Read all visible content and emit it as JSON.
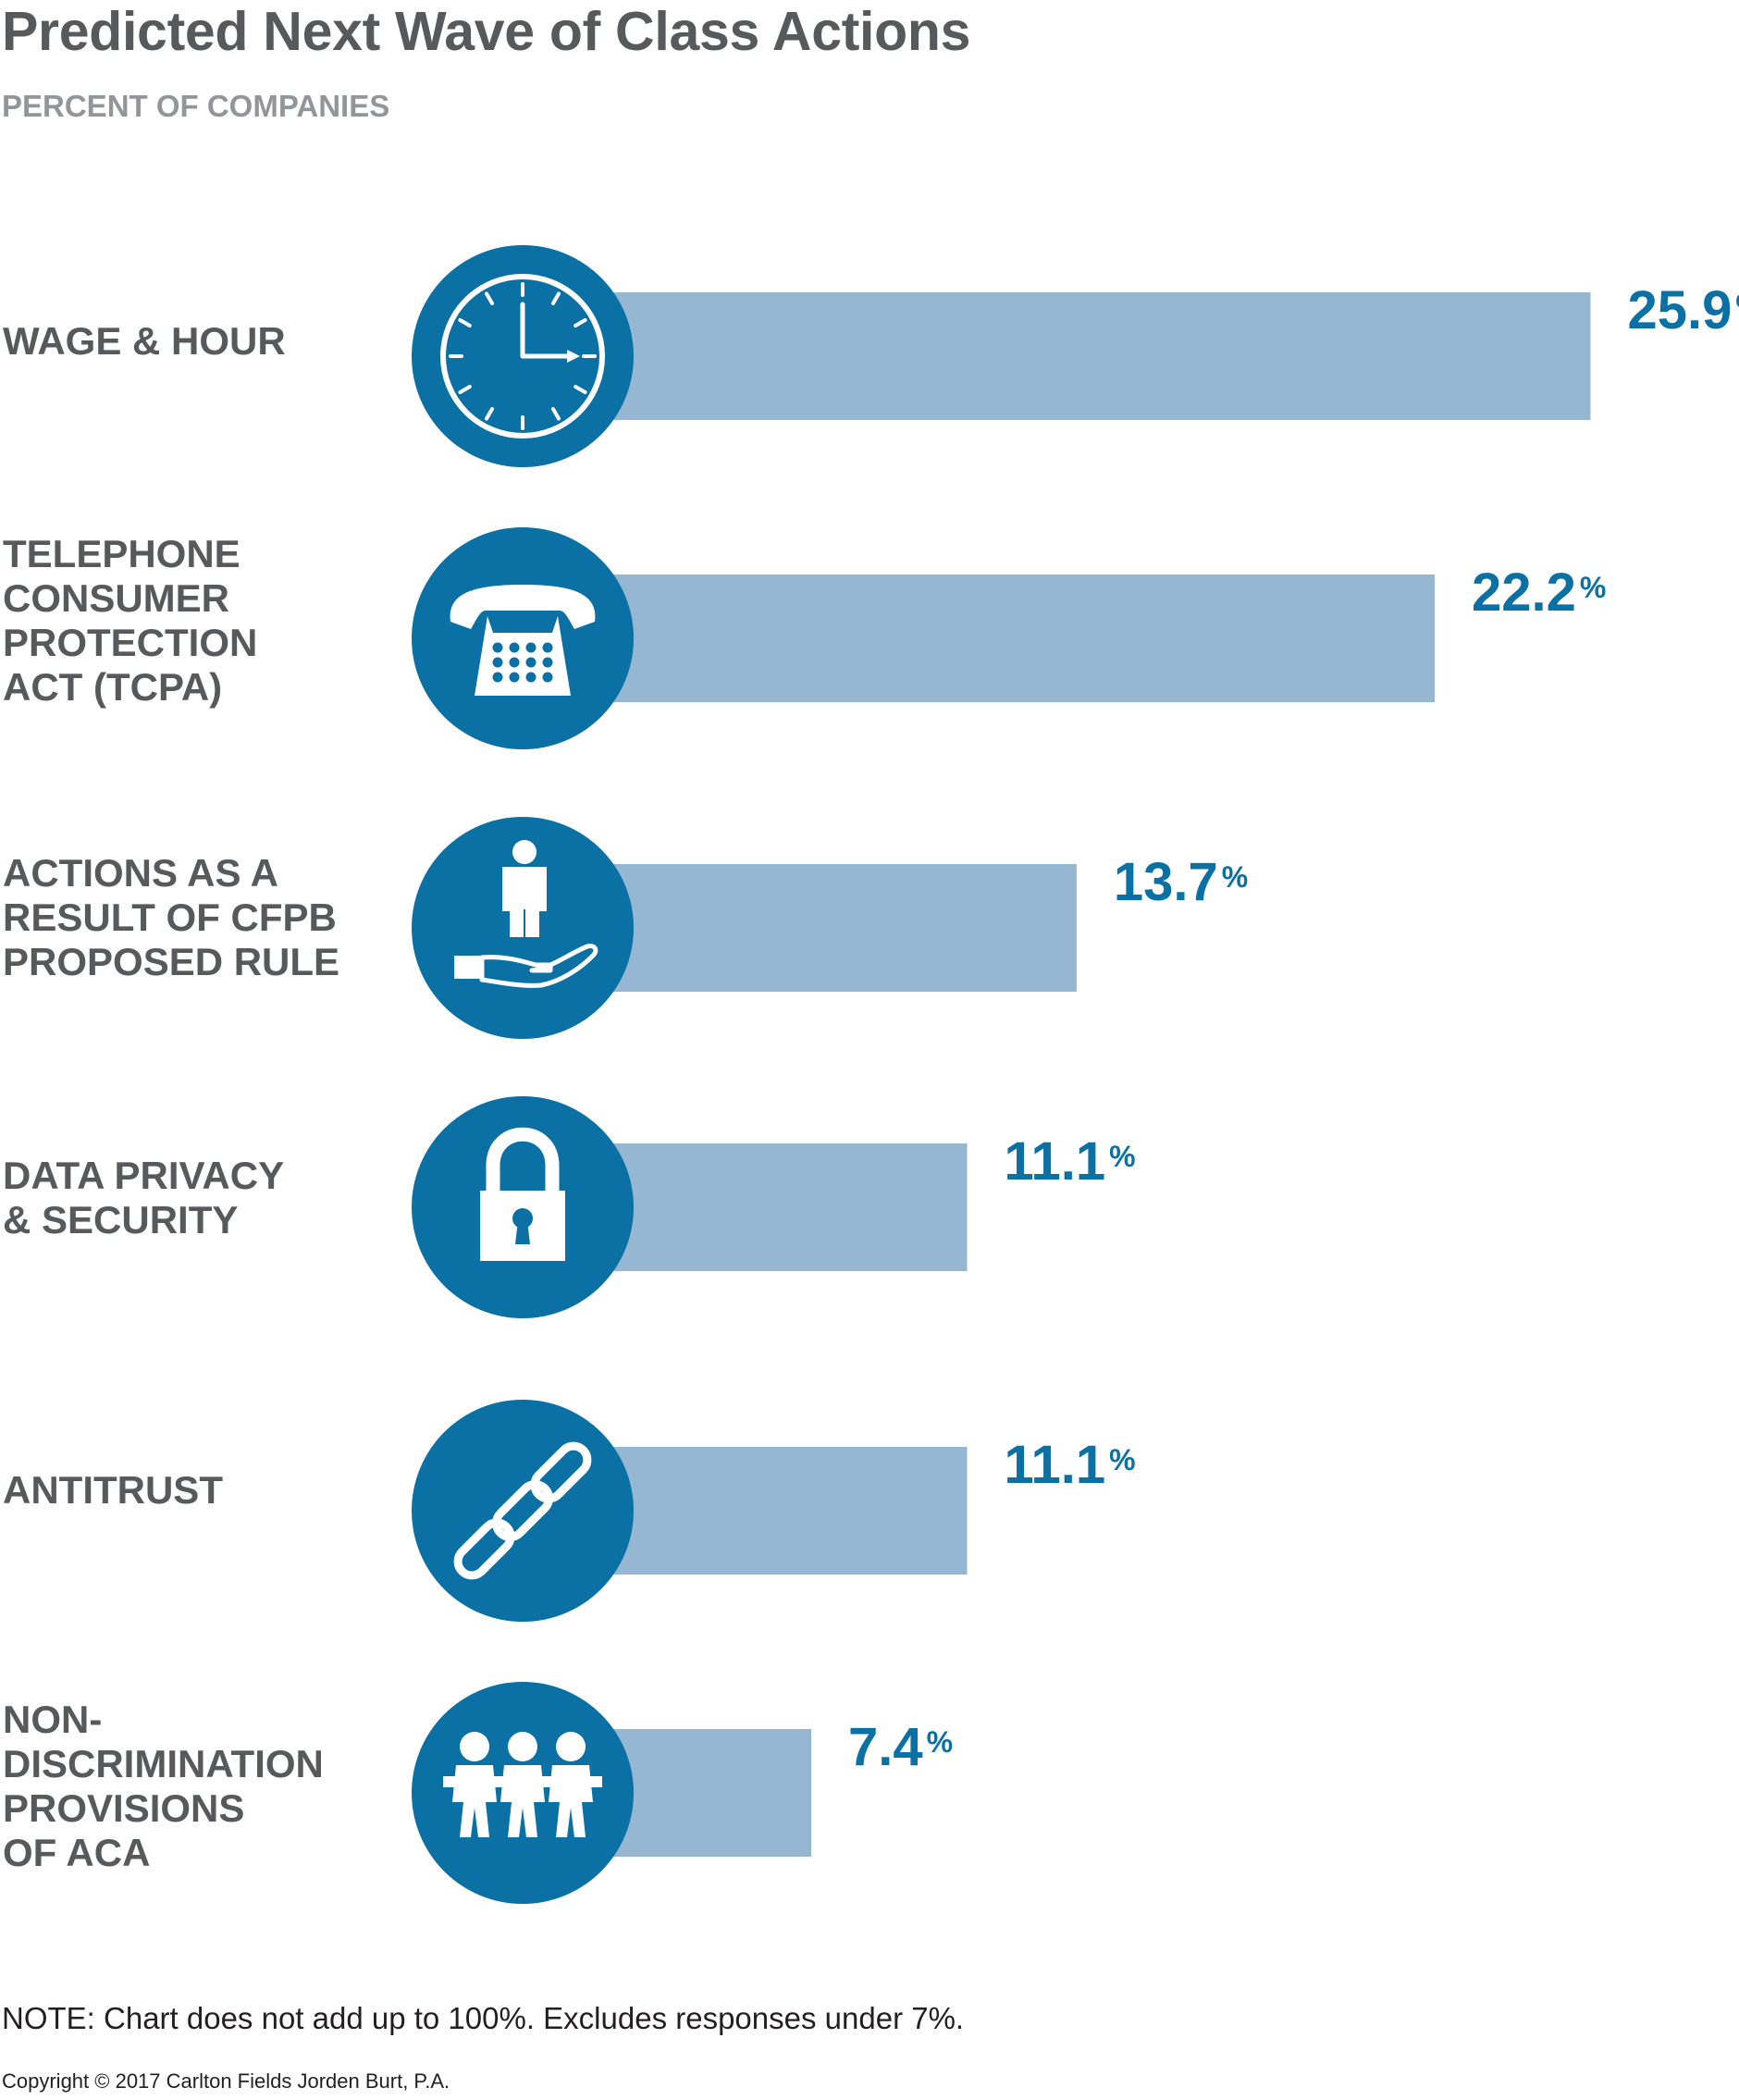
{
  "title": "Predicted Next Wave of Class Actions",
  "subtitle": "PERCENT OF COMPANIES",
  "note": "NOTE: Chart does not add up to 100%. Excludes responses under 7%.",
  "copyright": "Copyright © 2017 Carlton Fields Jorden Burt, P.A.",
  "colors": {
    "bar": "#95b7d1",
    "circle": "#0b70a3",
    "value": "#0b70a3",
    "label": "#58595b"
  },
  "chart_data": {
    "type": "bar",
    "orientation": "horizontal",
    "title": "Predicted Next Wave of Class Actions",
    "subtitle": "PERCENT OF COMPANIES",
    "unit": "%",
    "categories": [
      "WAGE & HOUR",
      "TELEPHONE CONSUMER PROTECTION ACT (TCPA)",
      "ACTIONS AS A RESULT OF CFPB PROPOSED RULE",
      "DATA PRIVACY & SECURITY",
      "ANTITRUST",
      "NON-DISCRIMINATION PROVISIONS OF ACA"
    ],
    "values": [
      25.9,
      22.2,
      13.7,
      11.1,
      11.1,
      7.4
    ],
    "value_labels": [
      "25.9",
      "22.2",
      "13.7",
      "11.1",
      "11.1",
      "7.4"
    ],
    "label_lines": [
      [
        "WAGE & HOUR"
      ],
      [
        "TELEPHONE",
        "CONSUMER",
        "PROTECTION",
        "ACT (TCPA)"
      ],
      [
        "ACTIONS AS A",
        "RESULT OF CFPB",
        "PROPOSED RULE"
      ],
      [
        "DATA PRIVACY",
        "& SECURITY"
      ],
      [
        "ANTITRUST"
      ],
      [
        "NON-",
        "DISCRIMINATION",
        "PROVISIONS",
        "OF ACA"
      ]
    ],
    "icons": [
      "clock-icon",
      "telephone-icon",
      "person-on-hand-icon",
      "padlock-icon",
      "chain-link-icon",
      "people-group-icon"
    ],
    "grid": false,
    "legend": "none"
  }
}
